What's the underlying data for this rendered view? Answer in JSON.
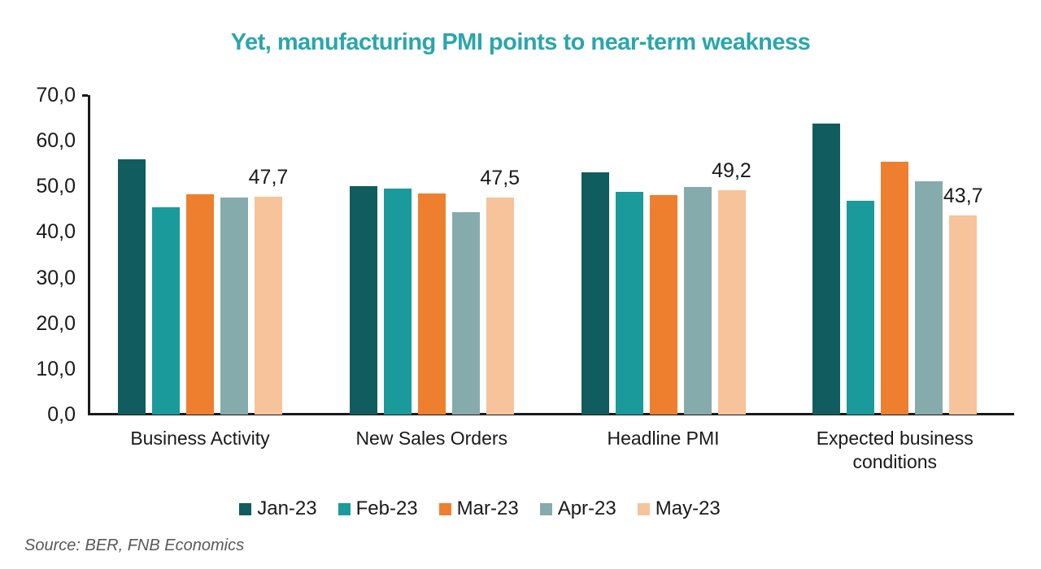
{
  "title": "Yet, manufacturing PMI points to near-term weakness",
  "source": "Source: BER, FNB Economics",
  "colors": {
    "title": "#2AA6AD",
    "axis": "#1a1a1a",
    "source_text": "#595959",
    "series": [
      "#115C5E",
      "#1A9A9B",
      "#EE7F2F",
      "#86ABAC",
      "#F6C39A"
    ]
  },
  "chart_data": {
    "type": "bar",
    "title": "Yet, manufacturing PMI points to near-term weakness",
    "categories": [
      "Business Activity",
      "New Sales Orders",
      "Headline PMI",
      "Expected business conditions"
    ],
    "series": [
      {
        "name": "Jan-23",
        "color": "#115C5E",
        "values": [
          56.0,
          50.1,
          53.0,
          63.8
        ]
      },
      {
        "name": "Feb-23",
        "color": "#1A9A9B",
        "values": [
          45.5,
          49.6,
          48.8,
          46.8
        ]
      },
      {
        "name": "Mar-23",
        "color": "#EE7F2F",
        "values": [
          48.3,
          48.5,
          48.1,
          55.4
        ]
      },
      {
        "name": "Apr-23",
        "color": "#86ABAC",
        "values": [
          47.6,
          44.4,
          49.8,
          51.2
        ]
      },
      {
        "name": "May-23",
        "color": "#F6C39A",
        "values": [
          47.7,
          47.5,
          49.2,
          43.7
        ]
      }
    ],
    "data_labels": {
      "series": "May-23",
      "values": [
        "47,7",
        "47,5",
        "49,2",
        "43,7"
      ]
    },
    "y_axis": {
      "min": 0,
      "max": 70,
      "step": 10,
      "tick_labels": [
        "70,0",
        "60,0",
        "50,0",
        "40,0",
        "30,0",
        "20,0",
        "10,0",
        "0,0"
      ]
    },
    "xlabel": "",
    "ylabel": "",
    "grid": false,
    "legend_position": "bottom"
  }
}
